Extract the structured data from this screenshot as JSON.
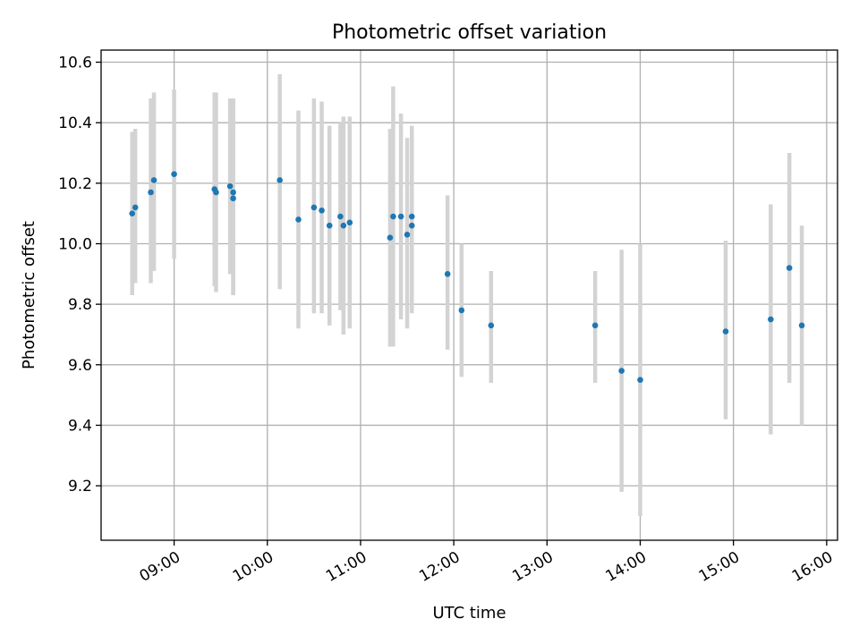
{
  "chart_data": {
    "type": "scatter",
    "title": "Photometric offset variation",
    "xlabel": "UTC time",
    "ylabel": "Photometric offset",
    "x_unit": "UTC time of day",
    "xlim": [
      "08:13",
      "16:07"
    ],
    "ylim": [
      9.02,
      10.64
    ],
    "x_ticks": [
      "09:00",
      "10:00",
      "11:00",
      "12:00",
      "13:00",
      "14:00",
      "15:00",
      "16:00"
    ],
    "y_ticks": [
      "9.2",
      "9.4",
      "9.6",
      "9.8",
      "10.0",
      "10.2",
      "10.4",
      "10.6"
    ],
    "grid": true,
    "marker_color": "#1f77b4",
    "errorbar_color": "#d3d3d3",
    "points": [
      {
        "time": "08:33",
        "y": 10.1,
        "lo": 9.83,
        "hi": 10.37
      },
      {
        "time": "08:35",
        "y": 10.12,
        "lo": 9.87,
        "hi": 10.38
      },
      {
        "time": "08:45",
        "y": 10.17,
        "lo": 9.87,
        "hi": 10.48
      },
      {
        "time": "08:47",
        "y": 10.21,
        "lo": 9.91,
        "hi": 10.5
      },
      {
        "time": "09:00",
        "y": 10.23,
        "lo": 9.95,
        "hi": 10.51
      },
      {
        "time": "09:26",
        "y": 10.18,
        "lo": 9.86,
        "hi": 10.5
      },
      {
        "time": "09:27",
        "y": 10.17,
        "lo": 9.84,
        "hi": 10.5
      },
      {
        "time": "09:36",
        "y": 10.19,
        "lo": 9.9,
        "hi": 10.48
      },
      {
        "time": "09:38",
        "y": 10.17,
        "lo": 9.83,
        "hi": 10.48
      },
      {
        "time": "09:38",
        "y": 10.15,
        "lo": 9.83,
        "hi": 10.48
      },
      {
        "time": "10:08",
        "y": 10.21,
        "lo": 9.85,
        "hi": 10.56
      },
      {
        "time": "10:20",
        "y": 10.08,
        "lo": 9.72,
        "hi": 10.44
      },
      {
        "time": "10:30",
        "y": 10.12,
        "lo": 9.77,
        "hi": 10.48
      },
      {
        "time": "10:35",
        "y": 10.11,
        "lo": 9.77,
        "hi": 10.47
      },
      {
        "time": "10:40",
        "y": 10.06,
        "lo": 9.73,
        "hi": 10.39
      },
      {
        "time": "10:47",
        "y": 10.09,
        "lo": 9.78,
        "hi": 10.4
      },
      {
        "time": "10:49",
        "y": 10.06,
        "lo": 9.7,
        "hi": 10.42
      },
      {
        "time": "10:53",
        "y": 10.07,
        "lo": 9.72,
        "hi": 10.42
      },
      {
        "time": "11:19",
        "y": 10.02,
        "lo": 9.66,
        "hi": 10.38
      },
      {
        "time": "11:21",
        "y": 10.09,
        "lo": 9.66,
        "hi": 10.52
      },
      {
        "time": "11:26",
        "y": 10.09,
        "lo": 9.75,
        "hi": 10.43
      },
      {
        "time": "11:30",
        "y": 10.03,
        "lo": 9.72,
        "hi": 10.35
      },
      {
        "time": "11:33",
        "y": 10.06,
        "lo": 9.77,
        "hi": 10.35
      },
      {
        "time": "11:33",
        "y": 10.09,
        "lo": 9.8,
        "hi": 10.39
      },
      {
        "time": "11:56",
        "y": 9.9,
        "lo": 9.65,
        "hi": 10.16
      },
      {
        "time": "12:05",
        "y": 9.78,
        "lo": 9.56,
        "hi": 10.0
      },
      {
        "time": "12:24",
        "y": 9.73,
        "lo": 9.54,
        "hi": 9.91
      },
      {
        "time": "13:31",
        "y": 9.73,
        "lo": 9.54,
        "hi": 9.91
      },
      {
        "time": "13:48",
        "y": 9.58,
        "lo": 9.18,
        "hi": 9.98
      },
      {
        "time": "14:00",
        "y": 9.55,
        "lo": 9.1,
        "hi": 10.0
      },
      {
        "time": "14:55",
        "y": 9.71,
        "lo": 9.42,
        "hi": 10.01
      },
      {
        "time": "15:24",
        "y": 9.75,
        "lo": 9.37,
        "hi": 10.13
      },
      {
        "time": "15:36",
        "y": 9.92,
        "lo": 9.54,
        "hi": 10.3
      },
      {
        "time": "15:44",
        "y": 9.73,
        "lo": 9.4,
        "hi": 10.06
      }
    ]
  }
}
